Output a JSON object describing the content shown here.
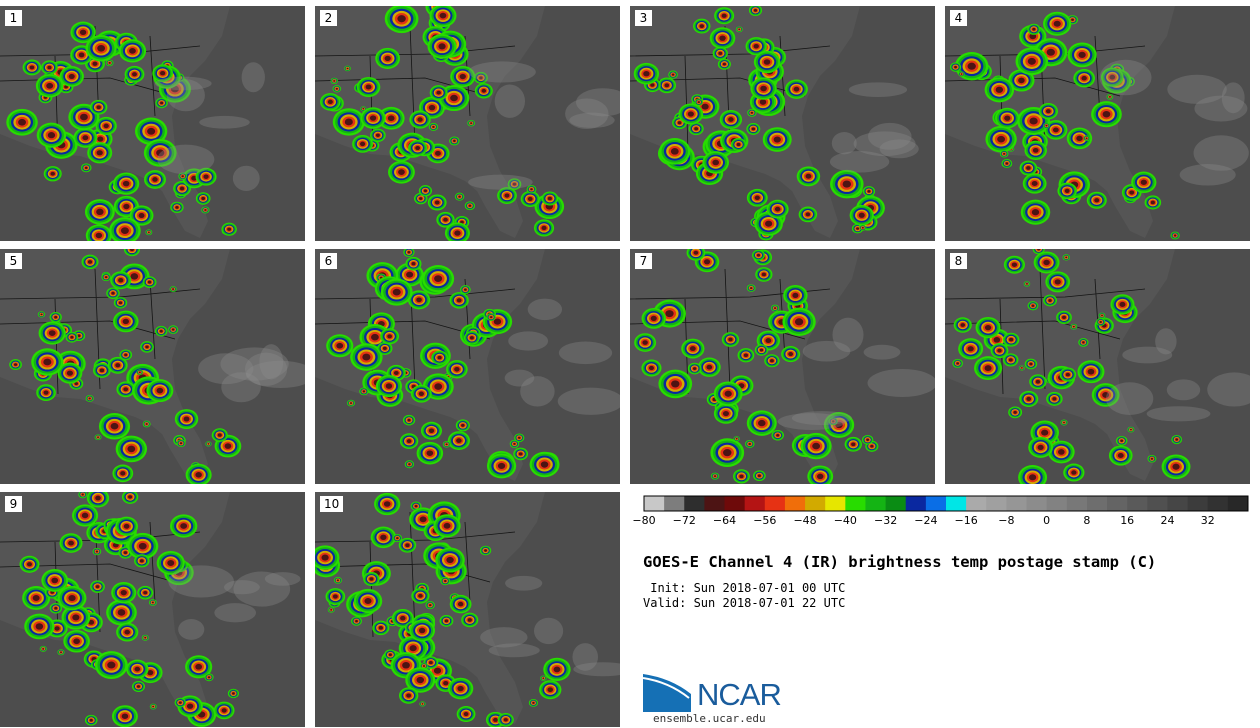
{
  "title": "GOES-E Channel 4 (IR) brightness temp postage stamp (C)",
  "init_line": " Init: Sun 2018-07-01 00 UTC",
  "valid_line": "Valid: Sun 2018-07-01 22 UTC",
  "brand": {
    "name": "NCAR",
    "url": "ensemble.ucar.edu",
    "logo_color": "#1570b5"
  },
  "panels": [
    "1",
    "2",
    "3",
    "4",
    "5",
    "6",
    "7",
    "8",
    "9",
    "10"
  ],
  "colorbar": {
    "unit": "C",
    "min": -80,
    "max": 40,
    "step": 4,
    "tick_labels": [
      "-80",
      "-72",
      "-64",
      "-56",
      "-48",
      "-40",
      "-32",
      "-24",
      "-16",
      "-8",
      "0",
      "8",
      "16",
      "24",
      "32"
    ],
    "colors": [
      "#c8c8c8",
      "#7d7d7d",
      "#2e2e2e",
      "#4d1414",
      "#6e0a0a",
      "#b41414",
      "#e63214",
      "#f06e0a",
      "#d2aa00",
      "#e6e600",
      "#28dc00",
      "#14b414",
      "#0a8c14",
      "#0a28a0",
      "#0a6ee6",
      "#00e6e6",
      "#aaaaaa",
      "#a0a0a0",
      "#969696",
      "#8c8c8c",
      "#828282",
      "#787878",
      "#6e6e6e",
      "#646464",
      "#5a5a5a",
      "#505050",
      "#464646",
      "#3c3c3c",
      "#323232",
      "#282828"
    ]
  },
  "map_colors": {
    "background": "#4d4d4d",
    "land": "#555555",
    "boundary": "#141414"
  }
}
